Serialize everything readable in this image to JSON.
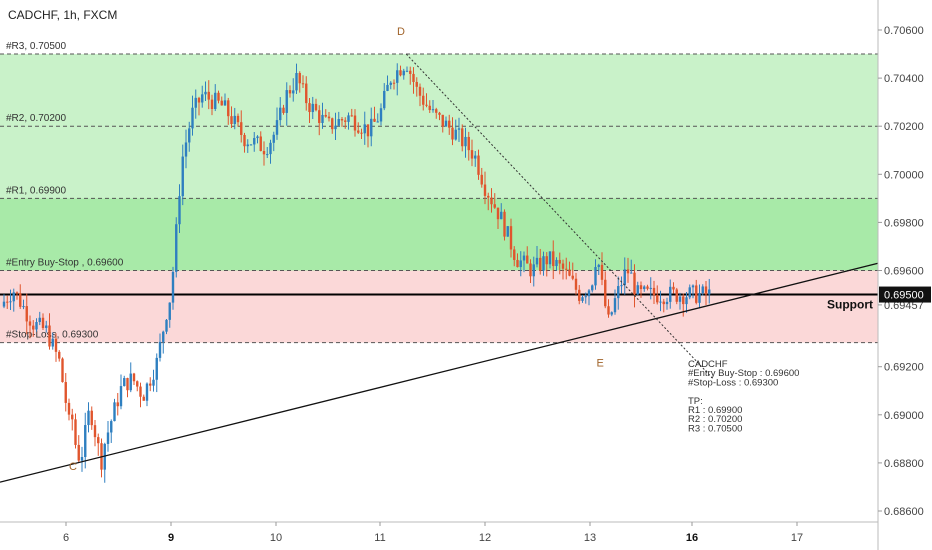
{
  "title": "CADCHF, 1h, FXCM",
  "colors": {
    "up": "#2e7fc0",
    "down": "#e0552d",
    "tp_zone": "#c9f2c9",
    "tp_zone_strong": "#a8eaa8",
    "sl_zone": "#fbd8d8",
    "grid_dash": "#555555",
    "support_line": "#000000",
    "trendline": "#111111",
    "wave_label": "#a0632a",
    "price_box": "#111111"
  },
  "chart_data": {
    "type": "candlestick",
    "symbol": "CADCHF",
    "timeframe": "1h",
    "source": "FXCM",
    "ylim": [
      0.6855,
      0.707
    ],
    "x_days": [
      5.5,
      17.8
    ],
    "y_ticks": [
      "0.70600",
      "0.70400",
      "0.70200",
      "0.70000",
      "0.69800",
      "0.69600",
      "0.69457",
      "0.69200",
      "0.69000",
      "0.68800",
      "0.68600"
    ],
    "x_ticks": [
      {
        "day": 6,
        "label": "6",
        "bold": false
      },
      {
        "day": 9,
        "label": "9",
        "bold": true
      },
      {
        "day": 10,
        "label": "10",
        "bold": false
      },
      {
        "day": 11,
        "label": "11",
        "bold": false
      },
      {
        "day": 12,
        "label": "12",
        "bold": false
      },
      {
        "day": 13,
        "label": "13",
        "bold": false
      },
      {
        "day": 16,
        "label": "16",
        "bold": true
      },
      {
        "day": 17,
        "label": "17",
        "bold": false
      }
    ],
    "levels": [
      {
        "label": "#R3, 0.70500",
        "value": 0.705
      },
      {
        "label": "#R2, 0.70200",
        "value": 0.702
      },
      {
        "label": "#R1, 0.69900",
        "value": 0.699
      },
      {
        "label": "#Entry Buy-Stop , 0.69600",
        "value": 0.696
      },
      {
        "label": "#Stop-Loss, 0.69300",
        "value": 0.693
      }
    ],
    "support": {
      "label": "Support",
      "value": 0.695,
      "price_label": "0.69500"
    },
    "current_price": 0.69457,
    "trendline": {
      "from": [
        5.5,
        0.6872
      ],
      "to": [
        17.8,
        0.6963
      ]
    },
    "projection": {
      "from": [
        11.25,
        0.705
      ],
      "to": [
        16.2,
        0.6915
      ]
    },
    "wave_points": [
      {
        "label": "C",
        "day": 6.2,
        "value": 0.6877
      },
      {
        "label": "D",
        "day": 11.2,
        "value": 0.7058
      },
      {
        "label": "E",
        "day": 13.3,
        "value": 0.692
      }
    ],
    "annotation": [
      "CADCHF",
      "#Entry Buy-Stop : 0.69600",
      "#Stop-Loss : 0.69300",
      "",
      "TP:",
      "R1 : 0.69900",
      "R2 : 0.70200",
      "R3 : 0.70500"
    ],
    "path": [
      [
        5.5,
        0.6945
      ],
      [
        5.6,
        0.6952
      ],
      [
        5.75,
        0.6938
      ],
      [
        5.85,
        0.6935
      ],
      [
        5.95,
        0.6922
      ],
      [
        6.0,
        0.6905
      ],
      [
        6.1,
        0.6895
      ],
      [
        6.2,
        0.6899
      ],
      [
        6.25,
        0.689
      ],
      [
        6.3,
        0.6885
      ],
      [
        6.4,
        0.6882
      ],
      [
        6.5,
        0.6886
      ],
      [
        6.6,
        0.6898
      ],
      [
        6.7,
        0.6902
      ],
      [
        6.8,
        0.6895
      ],
      [
        6.9,
        0.6888
      ],
      [
        7.0,
        0.688
      ],
      [
        7.1,
        0.6888
      ],
      [
        7.3,
        0.6898
      ],
      [
        7.6,
        0.6912
      ],
      [
        7.9,
        0.6915
      ],
      [
        8.2,
        0.6908
      ],
      [
        8.6,
        0.6922
      ],
      [
        8.9,
        0.6945
      ],
      [
        9.0,
        0.695
      ],
      [
        9.05,
        0.6976
      ],
      [
        9.1,
        0.7005
      ],
      [
        9.2,
        0.7025
      ],
      [
        9.3,
        0.7033
      ],
      [
        9.5,
        0.7028
      ],
      [
        9.7,
        0.7015
      ],
      [
        9.9,
        0.7011
      ],
      [
        10.0,
        0.7018
      ],
      [
        10.1,
        0.7033
      ],
      [
        10.2,
        0.704
      ],
      [
        10.3,
        0.703
      ],
      [
        10.5,
        0.702
      ],
      [
        10.7,
        0.7024
      ],
      [
        10.9,
        0.7018
      ],
      [
        11.0,
        0.7025
      ],
      [
        11.1,
        0.704
      ],
      [
        11.25,
        0.7047
      ],
      [
        11.35,
        0.7035
      ],
      [
        11.5,
        0.7025
      ],
      [
        11.7,
        0.7018
      ],
      [
        11.9,
        0.7008
      ],
      [
        12.0,
        0.6995
      ],
      [
        12.15,
        0.6982
      ],
      [
        12.3,
        0.6965
      ],
      [
        12.45,
        0.696
      ],
      [
        12.6,
        0.6965
      ],
      [
        12.75,
        0.696
      ],
      [
        12.9,
        0.695
      ],
      [
        13.05,
        0.6955
      ],
      [
        13.2,
        0.6968
      ],
      [
        13.3,
        0.6958
      ],
      [
        13.45,
        0.6945
      ],
      [
        13.55,
        0.6938
      ],
      [
        13.7,
        0.6946
      ],
      [
        13.85,
        0.6952
      ],
      [
        14.0,
        0.6958
      ],
      [
        14.1,
        0.696
      ],
      [
        14.2,
        0.6958
      ],
      [
        14.3,
        0.6954
      ],
      [
        14.35,
        0.695
      ]
    ]
  }
}
